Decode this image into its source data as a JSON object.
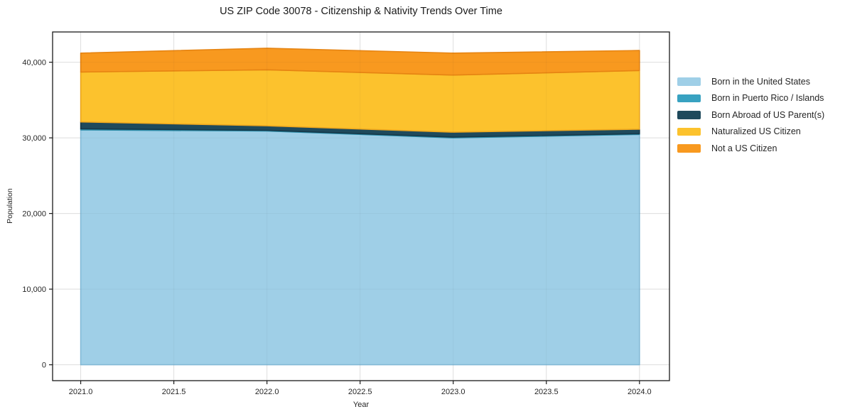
{
  "chart_data": {
    "type": "area",
    "stacked": true,
    "title": "US ZIP Code 30078 - Citizenship & Nativity Trends Over Time",
    "xlabel": "Year",
    "ylabel": "Population",
    "x": [
      2021,
      2022,
      2023,
      2024
    ],
    "series": [
      {
        "name": "Born in the United States",
        "values": [
          31050,
          30900,
          30000,
          30450
        ],
        "color": "#9FCFE7",
        "edge": "#85BEDC"
      },
      {
        "name": "Born in Puerto Rico / Islands",
        "values": [
          150,
          100,
          100,
          100
        ],
        "color": "#38A2C1",
        "edge": "#2B8CA8"
      },
      {
        "name": "Born Abroad of US Parent(s)",
        "values": [
          900,
          600,
          650,
          600
        ],
        "color": "#1F4A5C",
        "edge": "#16394A"
      },
      {
        "name": "Naturalized US Citizen",
        "values": [
          6600,
          7400,
          7550,
          7750
        ],
        "color": "#FCC22D",
        "edge": "#EFA81E"
      },
      {
        "name": "Not a US Citizen",
        "values": [
          2500,
          2850,
          2900,
          2650
        ],
        "color": "#F8991F",
        "edge": "#E68412"
      }
    ],
    "xticks": {
      "values": [
        2021.0,
        2021.5,
        2022.0,
        2022.5,
        2023.0,
        2023.5,
        2024.0
      ],
      "labels": [
        "2021.0",
        "2021.5",
        "2022.0",
        "2022.5",
        "2023.0",
        "2023.5",
        "2024.0"
      ]
    },
    "yticks": {
      "values": [
        0,
        10000,
        20000,
        30000,
        40000
      ],
      "labels": [
        "0",
        "10,000",
        "20,000",
        "30,000",
        "40,000"
      ]
    },
    "xlim": [
      2020.849,
      2024.161
    ],
    "ylim": [
      -2100,
      44000
    ],
    "grid": true,
    "legend_position": "right",
    "colors": {
      "grid": "#E7E7E7",
      "spine": "#1A1A1A",
      "tick_text": "#262626",
      "title_text": "#1A1A1A",
      "background": "#FFFFFF"
    }
  }
}
